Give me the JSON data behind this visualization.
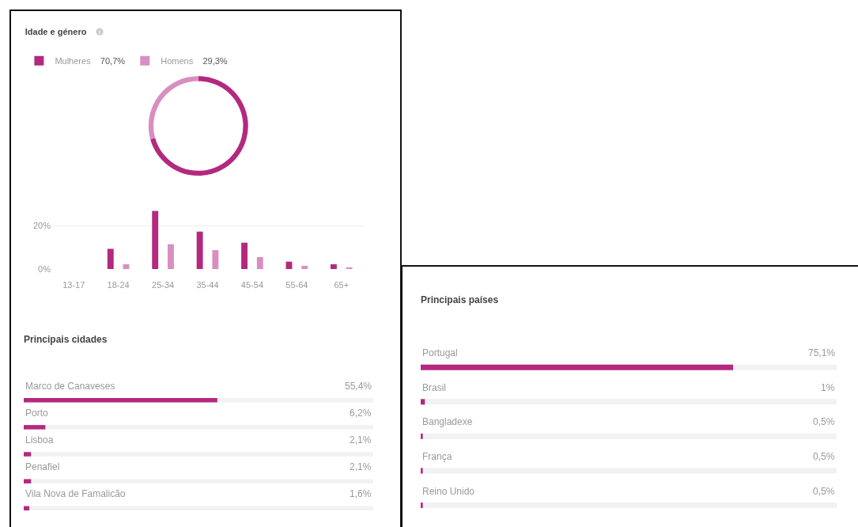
{
  "chart_data": [
    {
      "type": "donut",
      "title": "Idade e género",
      "categories": [
        "Mulheres",
        "Homens"
      ],
      "values": [
        70.7,
        29.3
      ],
      "value_labels": [
        "70,7%",
        "29,3%"
      ],
      "colors": [
        "#b3297f",
        "#d88fc0"
      ],
      "legend": "top left"
    },
    {
      "type": "bar",
      "categories": [
        "13-17",
        "18-24",
        "25-34",
        "35-44",
        "45-54",
        "55-64",
        "65+"
      ],
      "series": [
        {
          "color": "#b3297f",
          "values": [
            0,
            9.3,
            26.7,
            17.2,
            12.1,
            3.4,
            2.2
          ]
        },
        {
          "color": "#d88fc0",
          "values": [
            0,
            2.2,
            11.4,
            8.7,
            5.5,
            1.5,
            0.8
          ]
        }
      ],
      "ylim": [
        0,
        28
      ],
      "yticks": [
        {
          "value": 0,
          "label": "0%"
        },
        {
          "value": 20,
          "label": "20%"
        }
      ],
      "grid": "y"
    },
    {
      "type": "bar",
      "orientation": "horizontal",
      "title": "Principais cidades",
      "categories": [
        "Marco de Canaveses",
        "Porto",
        "Lisboa",
        "Penafiel",
        "Vila Nova de Famalicão"
      ],
      "values": [
        55.4,
        6.2,
        2.1,
        2.1,
        1.6
      ],
      "value_labels": [
        "55,4%",
        "6,2%",
        "2,1%",
        "2,1%",
        "1,6%"
      ],
      "color": "#b3297f",
      "xlim": [
        0,
        100
      ],
      "tick_labels": "y"
    },
    {
      "type": "bar",
      "orientation": "horizontal",
      "title": "Principais países",
      "categories": [
        "Portugal",
        "Brasil",
        "Bangladexe",
        "França",
        "Reino Unido"
      ],
      "values": [
        75.1,
        1,
        0.5,
        0.5,
        0.5
      ],
      "value_labels": [
        "75,1%",
        "1%",
        "0,5%",
        "0,5%",
        "0,5%"
      ],
      "color": "#b3297f",
      "xlim": [
        0,
        100
      ],
      "tick_labels": "y"
    }
  ]
}
